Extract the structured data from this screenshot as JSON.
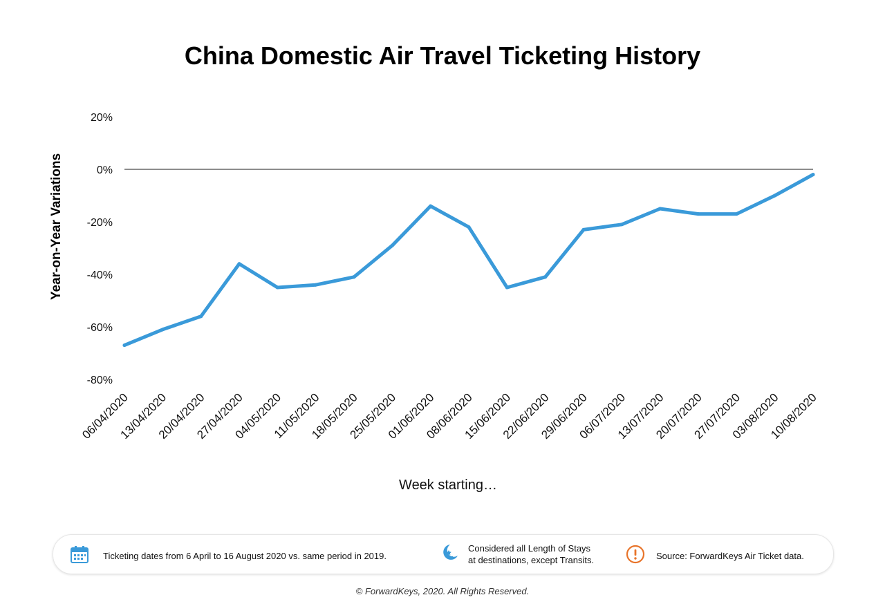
{
  "chart_data": {
    "type": "line",
    "title": "China Domestic Air Travel Ticketing History",
    "xlabel": "Week starting…",
    "ylabel": "Year-on-Year Variations",
    "ylim": [
      -80,
      20
    ],
    "yticks": [
      "20%",
      "0%",
      "-20%",
      "-40%",
      "-60%",
      "-80%"
    ],
    "grid": false,
    "legend": "none",
    "line_color": "#3a9ad9",
    "categories": [
      "06/04/2020",
      "13/04/2020",
      "20/04/2020",
      "27/04/2020",
      "04/05/2020",
      "11/05/2020",
      "18/05/2020",
      "25/05/2020",
      "01/06/2020",
      "08/06/2020",
      "15/06/2020",
      "22/06/2020",
      "29/06/2020",
      "06/07/2020",
      "13/07/2020",
      "20/07/2020",
      "27/07/2020",
      "03/08/2020",
      "10/08/2020"
    ],
    "series": [
      {
        "values": [
          -67,
          -61,
          -56,
          -36,
          -45,
          -44,
          -41,
          -29,
          -14,
          -22,
          -45,
          -41,
          -23,
          -21,
          -15,
          -17,
          -17,
          -10,
          -2
        ]
      }
    ]
  },
  "footer": {
    "items": [
      {
        "icon": "calendar-icon",
        "icon_color": "#3a9ad9",
        "text": "Ticketing dates from 6 April to 16 August 2020 vs. same period in 2019."
      },
      {
        "icon": "moon-stars-icon",
        "icon_color": "#3a9ad9",
        "text": "Considered all Length of Stays\nat destinations, except Transits."
      },
      {
        "icon": "exclamation-icon",
        "icon_color": "#e8742a",
        "text": "Source: ForwardKeys Air Ticket data."
      }
    ],
    "copyright": "© ForwardKeys, 2020. All Rights Reserved."
  }
}
